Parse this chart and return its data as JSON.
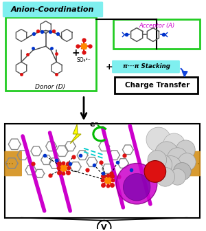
{
  "title": "Anion-Coordination",
  "donor_label": "Donor (D)",
  "acceptor_label": "Acceptor (A)",
  "so4_label": "SO₄²⁻",
  "pi_stacking_label": "π···π Stacking",
  "charge_transfer_label": "Charge Transfer",
  "electron_label": "e⁻",
  "bottom_symbol": "V",
  "cyan_bg": "#7FEFEF",
  "box_green": "#22CC22",
  "bg_white": "#FFFFFF",
  "fig_w": 3.0,
  "fig_h": 3.36,
  "dpi": 100,
  "electrode_color": "#D4901A",
  "magenta": "#CC00CC",
  "purple": "#7700AA",
  "orange": "#FF8800",
  "red": "#DD1111",
  "blue": "#0033CC",
  "green_arrow": "#00BB00",
  "gray_stick": "#888888",
  "sphere_gray": "#CCCCCC",
  "sphere_edge": "#999999"
}
